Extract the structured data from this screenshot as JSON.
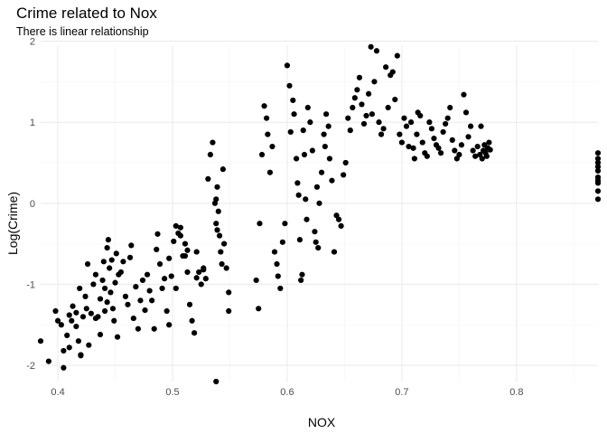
{
  "chart_data": {
    "type": "scatter",
    "title": "Crime related to Nox",
    "subtitle": "There is linear relationship",
    "xlabel": "NOX",
    "ylabel": "Log(Crime)",
    "xlim": [
      0.385,
      0.871
    ],
    "ylim": [
      -2.2,
      1.95
    ],
    "x_ticks": [
      0.4,
      0.5,
      0.6,
      0.7,
      0.8
    ],
    "x_tick_labels": [
      "0.4",
      "0.5",
      "0.6",
      "0.7",
      "0.8"
    ],
    "y_ticks": [
      -2,
      -1,
      0,
      1,
      2
    ],
    "y_tick_labels": [
      "-2",
      "-1",
      "0",
      "1",
      "2"
    ],
    "grid": true,
    "point_color": "#000000",
    "series": [
      {
        "points": [
          [
            0.385,
            -1.7
          ],
          [
            0.392,
            -1.95
          ],
          [
            0.398,
            -1.33
          ],
          [
            0.4,
            -1.45
          ],
          [
            0.403,
            -1.5
          ],
          [
            0.405,
            -1.82
          ],
          [
            0.408,
            -1.63
          ],
          [
            0.41,
            -1.78
          ],
          [
            0.412,
            -1.45
          ],
          [
            0.413,
            -1.27
          ],
          [
            0.416,
            -1.35
          ],
          [
            0.418,
            -1.7
          ],
          [
            0.42,
            -1.87
          ],
          [
            0.422,
            -1.4
          ],
          [
            0.424,
            -1.15
          ],
          [
            0.425,
            -1.3
          ],
          [
            0.427,
            -1.75
          ],
          [
            0.429,
            -1.36
          ],
          [
            0.431,
            -1.0
          ],
          [
            0.433,
            -0.88
          ],
          [
            0.435,
            -1.4
          ],
          [
            0.437,
            -1.18
          ],
          [
            0.439,
            -0.95
          ],
          [
            0.441,
            -1.05
          ],
          [
            0.443,
            -1.22
          ],
          [
            0.445,
            -0.8
          ],
          [
            0.447,
            -0.7
          ],
          [
            0.448,
            -1.3
          ],
          [
            0.45,
            -0.98
          ],
          [
            0.452,
            -1.65
          ],
          [
            0.405,
            -2.03
          ],
          [
            0.41,
            -1.38
          ],
          [
            0.416,
            -1.52
          ],
          [
            0.419,
            -1.05
          ],
          [
            0.42,
            -1.88
          ],
          [
            0.426,
            -0.75
          ],
          [
            0.433,
            -1.42
          ],
          [
            0.437,
            -1.62
          ],
          [
            0.44,
            -0.72
          ],
          [
            0.441,
            -1.33
          ],
          [
            0.443,
            -0.55
          ],
          [
            0.444,
            -0.45
          ],
          [
            0.446,
            -1.1
          ],
          [
            0.449,
            -1.45
          ],
          [
            0.451,
            -0.62
          ],
          [
            0.453,
            -0.88
          ],
          [
            0.455,
            -0.85
          ],
          [
            0.457,
            -0.72
          ],
          [
            0.459,
            -1.15
          ],
          [
            0.461,
            -1.25
          ],
          [
            0.463,
            -0.67
          ],
          [
            0.464,
            -0.52
          ],
          [
            0.466,
            -1.42
          ],
          [
            0.468,
            -1.03
          ],
          [
            0.47,
            -1.55
          ],
          [
            0.472,
            -1.2
          ],
          [
            0.474,
            -0.95
          ],
          [
            0.476,
            -1.32
          ],
          [
            0.478,
            -0.88
          ],
          [
            0.48,
            -1.08
          ],
          [
            0.482,
            -1.2
          ],
          [
            0.484,
            -1.55
          ],
          [
            0.486,
            -0.57
          ],
          [
            0.487,
            -0.38
          ],
          [
            0.489,
            -0.75
          ],
          [
            0.491,
            -1.05
          ],
          [
            0.493,
            -0.93
          ],
          [
            0.495,
            -1.33
          ],
          [
            0.497,
            -0.68
          ],
          [
            0.499,
            -0.9
          ],
          [
            0.501,
            -0.47
          ],
          [
            0.503,
            -0.28
          ],
          [
            0.505,
            -0.37
          ],
          [
            0.507,
            -0.3
          ],
          [
            0.509,
            -0.65
          ],
          [
            0.511,
            -0.5
          ],
          [
            0.513,
            -0.85
          ],
          [
            0.515,
            -1.25
          ],
          [
            0.517,
            -1.45
          ],
          [
            0.519,
            -1.6
          ],
          [
            0.521,
            -0.6
          ],
          [
            0.523,
            -0.85
          ],
          [
            0.525,
            -1.0
          ],
          [
            0.527,
            -0.8
          ],
          [
            0.529,
            -0.93
          ],
          [
            0.531,
            0.3
          ],
          [
            0.533,
            0.6
          ],
          [
            0.535,
            0.75
          ],
          [
            0.537,
            0.0
          ],
          [
            0.538,
            -0.25
          ],
          [
            0.538,
            0.05
          ],
          [
            0.539,
            0.2
          ],
          [
            0.54,
            -0.1
          ],
          [
            0.541,
            -0.4
          ],
          [
            0.542,
            -0.6
          ],
          [
            0.543,
            -0.75
          ],
          [
            0.544,
            0.42
          ],
          [
            0.545,
            -0.5
          ],
          [
            0.547,
            -0.8
          ],
          [
            0.549,
            -1.1
          ],
          [
            0.538,
            -2.2
          ],
          [
            0.527,
            -0.82
          ],
          [
            0.549,
            -1.33
          ],
          [
            0.507,
            -0.4
          ],
          [
            0.513,
            -0.58
          ],
          [
            0.521,
            -0.92
          ],
          [
            0.503,
            -1.05
          ],
          [
            0.497,
            -1.5
          ],
          [
            0.511,
            -0.65
          ],
          [
            0.539,
            -0.33
          ],
          [
            0.573,
            -0.95
          ],
          [
            0.575,
            -1.3
          ],
          [
            0.576,
            -0.25
          ],
          [
            0.578,
            0.6
          ],
          [
            0.58,
            1.2
          ],
          [
            0.582,
            1.05
          ],
          [
            0.583,
            0.85
          ],
          [
            0.585,
            0.38
          ],
          [
            0.587,
            0.7
          ],
          [
            0.589,
            -0.6
          ],
          [
            0.591,
            -0.75
          ],
          [
            0.592,
            -0.9
          ],
          [
            0.594,
            -1.05
          ],
          [
            0.596,
            -0.48
          ],
          [
            0.598,
            -0.25
          ],
          [
            0.6,
            1.7
          ],
          [
            0.602,
            1.45
          ],
          [
            0.603,
            0.88
          ],
          [
            0.605,
            1.27
          ],
          [
            0.606,
            1.1
          ],
          [
            0.608,
            0.55
          ],
          [
            0.609,
            0.25
          ],
          [
            0.61,
            0.1
          ],
          [
            0.611,
            -0.45
          ],
          [
            0.612,
            -0.95
          ],
          [
            0.613,
            -0.88
          ],
          [
            0.614,
            0.9
          ],
          [
            0.615,
            0.6
          ],
          [
            0.616,
            0.05
          ],
          [
            0.617,
            -0.2
          ],
          [
            0.618,
            1.18
          ],
          [
            0.62,
            1.0
          ],
          [
            0.622,
            0.65
          ],
          [
            0.624,
            -0.35
          ],
          [
            0.625,
            -0.48
          ],
          [
            0.626,
            0.2
          ],
          [
            0.627,
            -0.55
          ],
          [
            0.628,
            0.0
          ],
          [
            0.63,
            0.38
          ],
          [
            0.632,
            0.85
          ],
          [
            0.633,
            0.7
          ],
          [
            0.634,
            1.1
          ],
          [
            0.636,
            0.95
          ],
          [
            0.637,
            0.55
          ],
          [
            0.639,
            0.28
          ],
          [
            0.641,
            -0.6
          ],
          [
            0.643,
            -0.15
          ],
          [
            0.645,
            -0.2
          ],
          [
            0.647,
            -0.28
          ],
          [
            0.649,
            0.35
          ],
          [
            0.651,
            0.5
          ],
          [
            0.653,
            1.05
          ],
          [
            0.655,
            0.9
          ],
          [
            0.657,
            1.18
          ],
          [
            0.659,
            1.3
          ],
          [
            0.661,
            1.4
          ],
          [
            0.663,
            1.55
          ],
          [
            0.665,
            1.22
          ],
          [
            0.667,
            0.98
          ],
          [
            0.669,
            1.08
          ],
          [
            0.671,
            1.35
          ],
          [
            0.673,
            1.93
          ],
          [
            0.674,
            1.1
          ],
          [
            0.676,
            1.5
          ],
          [
            0.678,
            1.88
          ],
          [
            0.68,
            1.0
          ],
          [
            0.682,
            0.85
          ],
          [
            0.684,
            0.92
          ],
          [
            0.686,
            1.68
          ],
          [
            0.688,
            1.18
          ],
          [
            0.69,
            1.58
          ],
          [
            0.692,
            1.62
          ],
          [
            0.694,
            1.28
          ],
          [
            0.696,
            1.82
          ],
          [
            0.698,
            0.85
          ],
          [
            0.7,
            0.75
          ],
          [
            0.702,
            1.05
          ],
          [
            0.704,
            0.95
          ],
          [
            0.706,
            0.7
          ],
          [
            0.708,
            1.0
          ],
          [
            0.71,
            0.68
          ],
          [
            0.711,
            0.55
          ],
          [
            0.713,
            0.85
          ],
          [
            0.714,
            1.12
          ],
          [
            0.716,
            1.08
          ],
          [
            0.718,
            0.75
          ],
          [
            0.72,
            0.62
          ],
          [
            0.722,
            0.58
          ],
          [
            0.724,
            1.0
          ],
          [
            0.726,
            0.92
          ],
          [
            0.728,
            0.8
          ],
          [
            0.73,
            0.72
          ],
          [
            0.732,
            0.68
          ],
          [
            0.734,
            0.62
          ],
          [
            0.736,
            0.88
          ],
          [
            0.738,
            0.98
          ],
          [
            0.74,
            1.05
          ],
          [
            0.742,
            1.18
          ],
          [
            0.744,
            0.78
          ],
          [
            0.746,
            0.65
          ],
          [
            0.748,
            0.55
          ],
          [
            0.75,
            0.6
          ],
          [
            0.752,
            0.72
          ],
          [
            0.754,
            1.34
          ],
          [
            0.756,
            1.12
          ],
          [
            0.758,
            0.82
          ],
          [
            0.76,
            0.95
          ],
          [
            0.762,
            0.65
          ],
          [
            0.764,
            0.58
          ],
          [
            0.766,
            0.7
          ],
          [
            0.768,
            0.6
          ],
          [
            0.769,
            0.95
          ],
          [
            0.77,
            0.55
          ],
          [
            0.771,
            0.65
          ],
          [
            0.772,
            0.72
          ],
          [
            0.773,
            0.62
          ],
          [
            0.774,
            0.58
          ],
          [
            0.775,
            0.68
          ],
          [
            0.776,
            0.75
          ],
          [
            0.777,
            0.66
          ],
          [
            0.871,
            0.05
          ],
          [
            0.871,
            0.15
          ],
          [
            0.871,
            0.25
          ],
          [
            0.871,
            0.32
          ],
          [
            0.871,
            0.4
          ],
          [
            0.871,
            0.45
          ],
          [
            0.871,
            0.5
          ],
          [
            0.871,
            0.55
          ],
          [
            0.871,
            0.62
          ],
          [
            0.871,
            0.28
          ]
        ]
      }
    ]
  }
}
